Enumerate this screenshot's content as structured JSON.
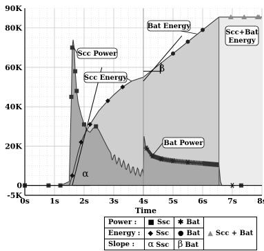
{
  "chart_data": {
    "type": "line",
    "xlabel": "Time",
    "ylabel": "",
    "xlim": [
      0,
      8
    ],
    "ylim": [
      -5000,
      90000
    ],
    "x_ticks": [
      "0s",
      "1s",
      "2s",
      "3s",
      "4s",
      "5s",
      "6s",
      "7s",
      "8s"
    ],
    "y_ticks": [
      "-5K",
      "0",
      "20K",
      "40K",
      "60K",
      "80K",
      "90K"
    ],
    "grid": true,
    "series": [
      {
        "name": "Scc Power",
        "marker": "square",
        "x": [
          0,
          0.8,
          1.2,
          1.5,
          1.53,
          1.57,
          1.6,
          1.63,
          1.67,
          1.7,
          1.75,
          1.8,
          1.9,
          2.0,
          2.1,
          2.2,
          2.3,
          2.4,
          2.5,
          2.6,
          2.7,
          2.8,
          2.9,
          3.0,
          3.2,
          3.4,
          3.6,
          3.8,
          4.0
        ],
        "y": [
          0,
          0,
          0,
          2000,
          20000,
          45000,
          70000,
          74000,
          69000,
          58000,
          48000,
          42000,
          36000,
          31000,
          28000,
          27000,
          29000,
          30000,
          28000,
          25000,
          22000,
          19000,
          16000,
          14000,
          12000,
          10000,
          8000,
          7000,
          6000
        ]
      },
      {
        "name": "Bat Power",
        "marker": "star",
        "x": [
          4.0,
          4.02,
          4.1,
          4.3,
          4.6,
          5.0,
          5.5,
          6.0,
          6.3,
          6.55,
          6.6,
          6.65,
          7.0,
          7.5,
          8.0
        ],
        "y": [
          5000,
          25000,
          19000,
          15000,
          13500,
          12500,
          11800,
          11200,
          10800,
          10500,
          2000,
          0,
          0,
          0,
          0
        ]
      },
      {
        "name": "Scc Energy",
        "marker": "diamond",
        "x": [
          0,
          1.5,
          1.6,
          1.7,
          1.8,
          1.9,
          2.0,
          2.2,
          2.5,
          2.8,
          3.0,
          3.3,
          3.6,
          4.0
        ],
        "y": [
          0,
          0,
          5000,
          11000,
          17000,
          22000,
          25500,
          31000,
          38000,
          43000,
          46000,
          50000,
          53000,
          55000
        ]
      },
      {
        "name": "Bat Energy",
        "marker": "circle",
        "x": [
          4.0,
          4.5,
          5.0,
          5.5,
          6.0,
          6.55
        ],
        "y": [
          55000,
          61000,
          67000,
          73000,
          79000,
          85500
        ]
      },
      {
        "name": "Scc + Bat",
        "marker": "triangle",
        "x": [
          6.55,
          7.0,
          7.5,
          8.0
        ],
        "y": [
          85500,
          85500,
          85500,
          85500
        ]
      }
    ],
    "annotations": [
      "Scc Power",
      "Scc Energy",
      "Bat Energy",
      "Bat Power",
      "Scc+Bat",
      "Energy",
      "α",
      "β"
    ],
    "legend_placement": "bottom-right",
    "legend": {
      "rows": [
        {
          "label": "Power :",
          "entries": [
            "Ssc",
            "Bat"
          ]
        },
        {
          "label": "Energy :",
          "entries": [
            "Ssc",
            "Bat"
          ]
        },
        {
          "label": "Slope :",
          "entries": [
            "Ssc",
            "Bat"
          ]
        }
      ],
      "combined": "Scc + Bat",
      "slope_symbols": [
        "α",
        "β"
      ]
    }
  }
}
